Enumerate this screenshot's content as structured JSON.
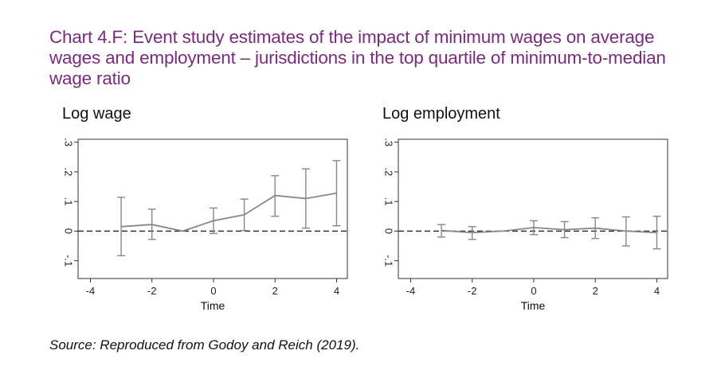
{
  "title_lines": [
    "Chart 4.F: Event study estimates of the impact of minimum wages on average",
    "wages and employment – jurisdictions in the top quartile of minimum-to-median",
    "wage ratio"
  ],
  "source": "Source: Reproduced from Godoy and Reich (2019).",
  "colors": {
    "title": "#7b2b7e",
    "series": "#888888",
    "axis": "#333333"
  },
  "chart_data": [
    {
      "type": "line",
      "title": "Log wage",
      "xlabel": "Time",
      "ylabel": "",
      "xlim": [
        -4.4,
        4.35
      ],
      "ylim": [
        -0.16,
        0.31
      ],
      "xticks": [
        -4,
        -2,
        0,
        2,
        4
      ],
      "xtick_labels": [
        "-4",
        "-2",
        "0",
        "2",
        "4"
      ],
      "yticks": [
        -0.1,
        0,
        0.1,
        0.2,
        0.3
      ],
      "ytick_labels": [
        "-.1",
        "0",
        ".1",
        ".2",
        ".3"
      ],
      "reference_line": 0,
      "grid": false,
      "series": [
        {
          "x": [
            -3,
            -2,
            -1,
            0,
            1,
            2,
            3,
            4
          ],
          "y": [
            0.015,
            0.022,
            0,
            0.035,
            0.055,
            0.12,
            0.11,
            0.128
          ],
          "ci_low": [
            -0.083,
            -0.028,
            null,
            -0.008,
            0.002,
            0.05,
            0.01,
            0.018
          ],
          "ci_high": [
            0.114,
            0.074,
            null,
            0.078,
            0.108,
            0.187,
            0.21,
            0.238
          ]
        }
      ]
    },
    {
      "type": "line",
      "title": "Log employment",
      "xlabel": "Time",
      "ylabel": "",
      "xlim": [
        -4.4,
        4.35
      ],
      "ylim": [
        -0.16,
        0.31
      ],
      "xticks": [
        -4,
        -2,
        0,
        2,
        4
      ],
      "xtick_labels": [
        "-4",
        "-2",
        "0",
        "2",
        "4"
      ],
      "yticks": [
        -0.1,
        0,
        0.1,
        0.2,
        0.3
      ],
      "ytick_labels": [
        "-.1",
        "0",
        ".1",
        ".2",
        ".3"
      ],
      "reference_line": 0,
      "grid": false,
      "series": [
        {
          "x": [
            -3,
            -2,
            -1,
            0,
            1,
            2,
            3,
            4
          ],
          "y": [
            0.002,
            -0.005,
            0,
            0.012,
            0.005,
            0.01,
            0,
            -0.005
          ],
          "ci_low": [
            -0.02,
            -0.028,
            null,
            -0.012,
            -0.022,
            -0.025,
            -0.05,
            -0.06
          ],
          "ci_high": [
            0.022,
            0.015,
            null,
            0.035,
            0.032,
            0.045,
            0.048,
            0.05
          ]
        }
      ]
    }
  ]
}
